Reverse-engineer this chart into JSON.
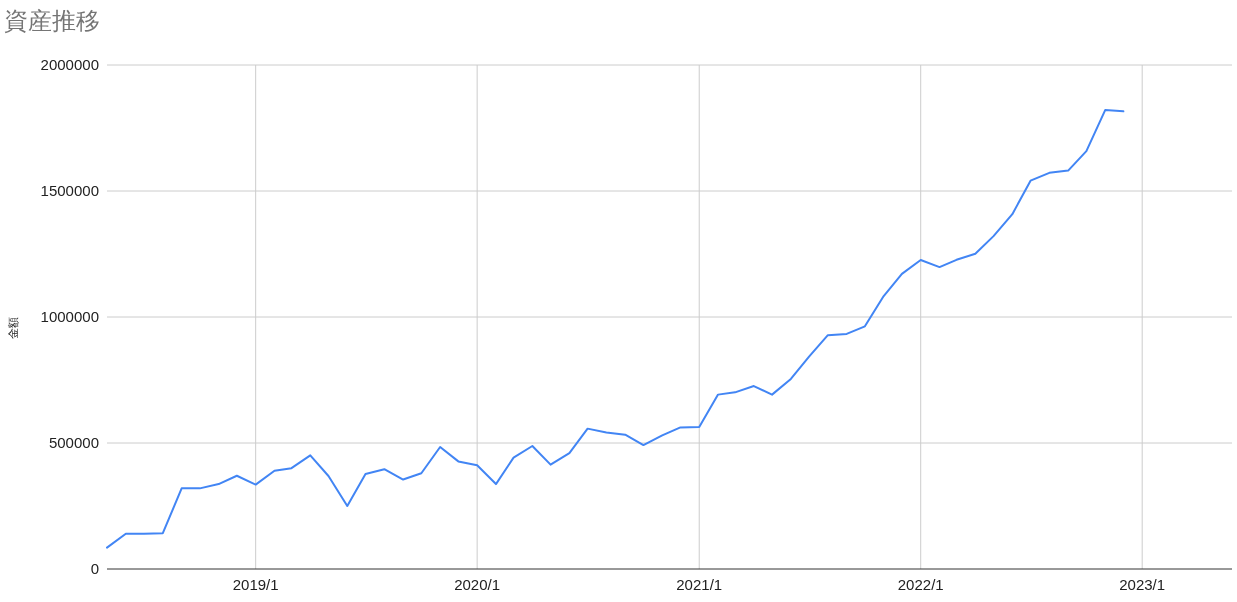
{
  "chart_data": {
    "type": "line",
    "title": "資産推移",
    "ylabel": "金額",
    "x": [
      "2018-05",
      "2018-06",
      "2018-07",
      "2018-08",
      "2018-09",
      "2018-10",
      "2018-11",
      "2018-12",
      "2019-01",
      "2019-02",
      "2019-03",
      "2019-04",
      "2019-05",
      "2019-06",
      "2019-07",
      "2019-08",
      "2019-09",
      "2019-10",
      "2019-11",
      "2019-12",
      "2020-01",
      "2020-02",
      "2020-03",
      "2020-04",
      "2020-05",
      "2020-06",
      "2020-07",
      "2020-08",
      "2020-09",
      "2020-10",
      "2020-11",
      "2020-12",
      "2021-01",
      "2021-02",
      "2021-03",
      "2021-04",
      "2021-05",
      "2021-06",
      "2021-07",
      "2021-08",
      "2021-09",
      "2021-10",
      "2021-11",
      "2021-12",
      "2022-01",
      "2022-02",
      "2022-03",
      "2022-04",
      "2022-05",
      "2022-06",
      "2022-07",
      "2022-08",
      "2022-09",
      "2022-10",
      "2022-11",
      "2022-12"
    ],
    "values": [
      85000,
      140000,
      140000,
      142000,
      320000,
      320000,
      337000,
      370000,
      335000,
      390000,
      400000,
      451000,
      369000,
      250000,
      377000,
      396000,
      355000,
      380000,
      484000,
      427000,
      412000,
      337000,
      442000,
      488000,
      414000,
      460000,
      557000,
      542000,
      533000,
      492000,
      530000,
      562000,
      563000,
      692000,
      701000,
      726000,
      692000,
      754000,
      843000,
      928000,
      933000,
      963000,
      1083000,
      1171000,
      1226000,
      1198000,
      1227000,
      1251000,
      1321000,
      1408000,
      1541000,
      1572000,
      1581000,
      1658000,
      1821000,
      1816000
    ],
    "color": "#4285f4",
    "xlim": [
      "2018-05",
      "2023-05-29"
    ],
    "xticks": [
      {
        "value": "2019-01",
        "label": "2019/1"
      },
      {
        "value": "2020-01",
        "label": "2020/1"
      },
      {
        "value": "2021-01",
        "label": "2021/1"
      },
      {
        "value": "2022-01",
        "label": "2022/1"
      },
      {
        "value": "2023-01",
        "label": "2023/1"
      }
    ],
    "ylim": [
      0,
      2000000
    ],
    "yticks": [
      0,
      500000,
      1000000,
      1500000,
      2000000
    ],
    "grid": true
  }
}
